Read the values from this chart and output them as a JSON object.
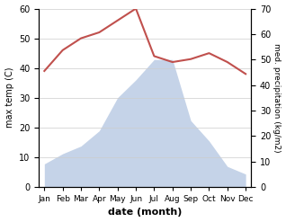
{
  "months": [
    "Jan",
    "Feb",
    "Mar",
    "Apr",
    "May",
    "Jun",
    "Jul",
    "Aug",
    "Sep",
    "Oct",
    "Nov",
    "Dec"
  ],
  "x": [
    0,
    1,
    2,
    3,
    4,
    5,
    6,
    7,
    8,
    9,
    10,
    11
  ],
  "temp": [
    39,
    46,
    50,
    52,
    56,
    60,
    44,
    42,
    43,
    45,
    42,
    38
  ],
  "precip": [
    9,
    13,
    16,
    22,
    35,
    42,
    50,
    50,
    26,
    18,
    8,
    5
  ],
  "temp_color": "#c0504d",
  "precip_fill_color": "#c5d3e8",
  "temp_ylim": [
    0,
    60
  ],
  "precip_ylim": [
    0,
    70
  ],
  "temp_yticks": [
    0,
    10,
    20,
    30,
    40,
    50,
    60
  ],
  "precip_yticks": [
    0,
    10,
    20,
    30,
    40,
    50,
    60,
    70
  ],
  "ylabel_left": "max temp (C)",
  "ylabel_right": "med. precipitation (kg/m2)",
  "xlabel": "date (month)",
  "figsize": [
    3.18,
    2.47
  ],
  "dpi": 100
}
